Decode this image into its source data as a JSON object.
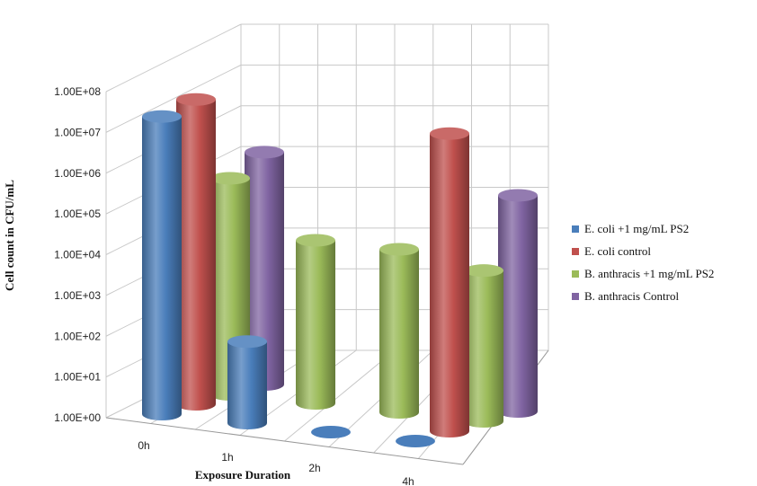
{
  "chart_data": {
    "type": "bar3d",
    "title": "",
    "xlabel": "Exposure Duration",
    "ylabel": "Cell count in CFU/mL",
    "yscale": "log",
    "ylim": [
      1,
      100000000
    ],
    "y_ticks": [
      "1.00E+00",
      "1.00E+01",
      "1.00E+02",
      "1.00E+03",
      "1.00E+04",
      "1.00E+05",
      "1.00E+06",
      "1.00E+07",
      "1.00E+08"
    ],
    "categories": [
      "0h",
      "1h",
      "2h",
      "4h"
    ],
    "series": [
      {
        "name": "E. coli +1 mg/mL PS2",
        "color": "#4a7ebb",
        "values": [
          20000000,
          100,
          1,
          1
        ]
      },
      {
        "name": "E. coli control",
        "color": "#c0504d",
        "values": [
          30000000,
          null,
          null,
          20000000
        ]
      },
      {
        "name": "B. anthracis +1 mg/mL PS2",
        "color": "#9bbb59",
        "values": [
          200000,
          10000,
          10000,
          5000
        ]
      },
      {
        "name": "B. anthracis  Control",
        "color": "#8064a2",
        "values": [
          500000,
          null,
          null,
          200000
        ]
      }
    ],
    "legend_position": "right",
    "grid": true
  }
}
